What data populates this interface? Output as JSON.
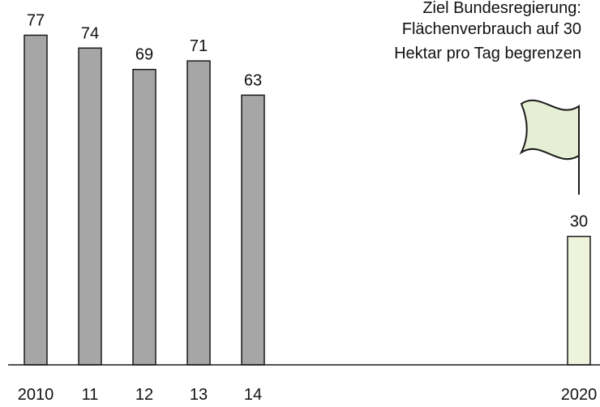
{
  "chart_data": {
    "type": "bar",
    "categories": [
      "2010",
      "11",
      "12",
      "13",
      "14",
      "2020"
    ],
    "values": [
      77,
      74,
      69,
      71,
      63,
      30
    ],
    "data_labels": [
      "77",
      "74",
      "69",
      "71",
      "63",
      "30"
    ],
    "title": "",
    "xlabel": "",
    "ylabel": "",
    "ylim": [
      0,
      80
    ],
    "grid": false,
    "legend": "none",
    "annotation": {
      "lines": [
        "Ziel Bundesregierung:",
        "Flächenverbrauch auf 30",
        "Hektar pro Tag begrenzen"
      ],
      "icon": "flag-icon"
    },
    "colors": {
      "actual_bar": "#a6a6a6",
      "target_bar": "#eef3dc",
      "outline": "#1a1a1a",
      "flag_fill": "#e6efd6"
    }
  }
}
